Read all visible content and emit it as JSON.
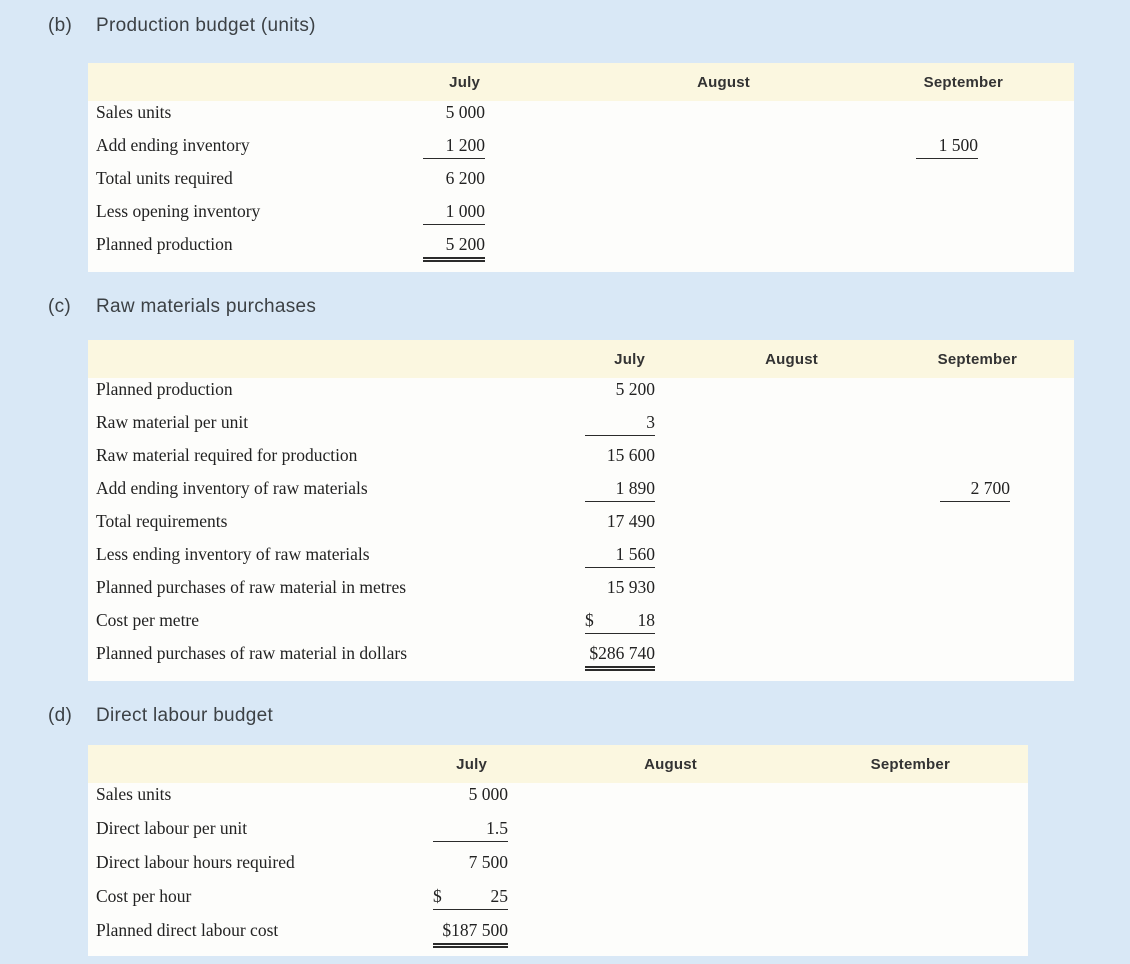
{
  "page": {
    "background_color": "#d9e8f6",
    "card_color": "#fdfdfb",
    "header_band_color": "#fbf7e0",
    "rule_color": "#2b2b2b"
  },
  "sections": [
    {
      "marker": "(b)",
      "title": "Production budget (units)",
      "columns": {
        "july": "July",
        "august": "August",
        "september": "September"
      },
      "rows": [
        {
          "label": "Sales units",
          "cells": {
            "july": {
              "text": "5 000"
            }
          }
        },
        {
          "label": "Add ending inventory",
          "cells": {
            "july": {
              "text": "1 200",
              "underline": "single"
            },
            "september": {
              "text": "1 500",
              "underline": "single"
            }
          }
        },
        {
          "label": "Total units required",
          "cells": {
            "july": {
              "text": "6 200"
            }
          }
        },
        {
          "label": "Less opening inventory",
          "cells": {
            "july": {
              "text": "1 000",
              "underline": "single"
            }
          }
        },
        {
          "label": "Planned production",
          "cells": {
            "july": {
              "text": "5 200",
              "underline": "double"
            }
          }
        }
      ]
    },
    {
      "marker": "(c)",
      "title": "Raw materials purchases",
      "columns": {
        "july": "July",
        "august": "August",
        "september": "September"
      },
      "rows": [
        {
          "label": "Planned production",
          "cells": {
            "july": {
              "text": "5 200"
            }
          }
        },
        {
          "label": "Raw material per unit",
          "cells": {
            "july": {
              "text": "3",
              "underline": "single"
            }
          }
        },
        {
          "label": "Raw material required for production",
          "cells": {
            "july": {
              "text": "15 600"
            }
          }
        },
        {
          "label": "Add ending inventory of raw materials",
          "cells": {
            "july": {
              "text": "1 890",
              "underline": "single"
            },
            "september": {
              "text": "2 700",
              "underline": "single"
            }
          }
        },
        {
          "label": "Total requirements",
          "cells": {
            "july": {
              "text": "17 490"
            }
          }
        },
        {
          "label": "Less ending inventory of raw materials",
          "cells": {
            "july": {
              "text": "1 560",
              "underline": "single"
            }
          }
        },
        {
          "label": "Planned purchases of raw material in metres",
          "cells": {
            "july": {
              "text": "15 930"
            }
          }
        },
        {
          "label": "Cost per metre",
          "cells": {
            "july": {
              "text": "18",
              "dollar": "$",
              "underline": "single"
            }
          }
        },
        {
          "label": "Planned purchases of raw material in dollars",
          "cells": {
            "july": {
              "text": "$286 740",
              "underline": "double"
            }
          }
        }
      ]
    },
    {
      "marker": "(d)",
      "title": "Direct labour budget",
      "columns": {
        "july": "July",
        "august": "August",
        "september": "September"
      },
      "rows": [
        {
          "label": "Sales units",
          "cells": {
            "july": {
              "text": "5 000"
            }
          }
        },
        {
          "label": "Direct labour per unit",
          "cells": {
            "july": {
              "text": "1.5",
              "underline": "single"
            }
          }
        },
        {
          "label": "Direct labour hours required",
          "cells": {
            "july": {
              "text": "7 500"
            }
          }
        },
        {
          "label": "Cost per hour",
          "cells": {
            "july": {
              "text": "25",
              "dollar": "$",
              "underline": "single"
            }
          }
        },
        {
          "label": "Planned direct labour cost",
          "cells": {
            "july": {
              "text": "$187 500",
              "underline": "double"
            }
          }
        }
      ]
    }
  ]
}
